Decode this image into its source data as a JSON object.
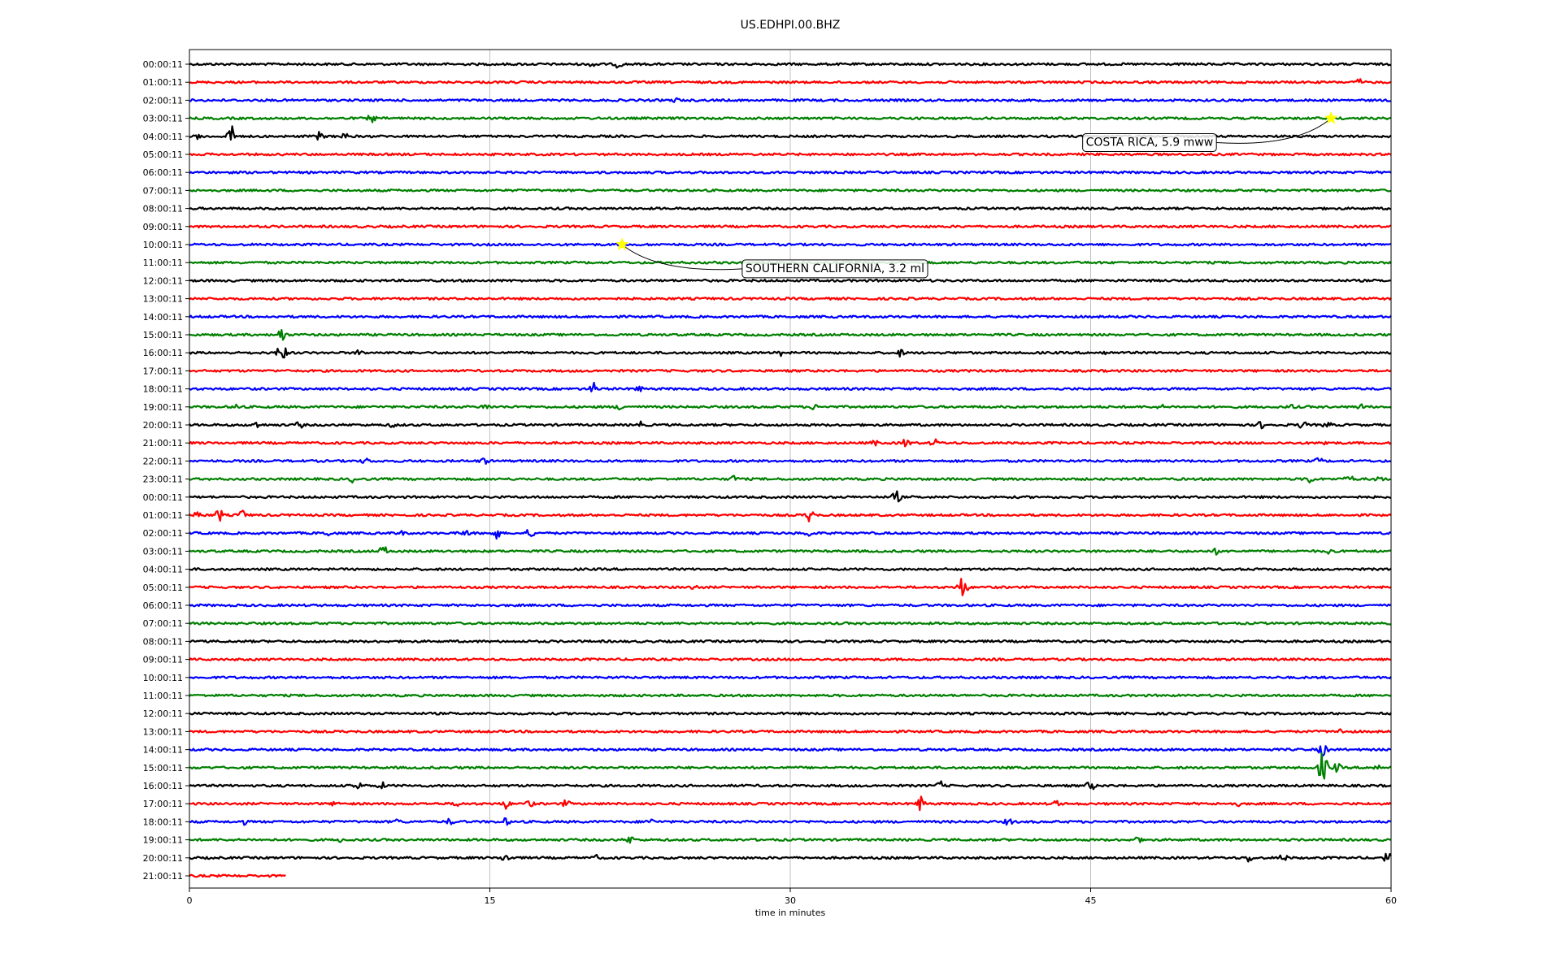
{
  "chart_data": {
    "type": "line",
    "title": "US.EDHPI.00.BHZ",
    "xlabel": "time in minutes",
    "xlim": [
      0,
      60
    ],
    "xticks": [
      "0",
      "15",
      "30",
      "45",
      "60"
    ],
    "grid_x": true,
    "trace_minutes": 60,
    "last_trace_minutes": 4.8,
    "color_cycle": [
      "#000000",
      "#ff0000",
      "#0000ff",
      "#008000"
    ],
    "row_labels": [
      "00:00:11",
      "01:00:11",
      "02:00:11",
      "03:00:11",
      "04:00:11",
      "05:00:11",
      "06:00:11",
      "07:00:11",
      "08:00:11",
      "09:00:11",
      "10:00:11",
      "11:00:11",
      "12:00:11",
      "13:00:11",
      "14:00:11",
      "15:00:11",
      "16:00:11",
      "17:00:11",
      "18:00:11",
      "19:00:11",
      "20:00:11",
      "21:00:11",
      "22:00:11",
      "23:00:11",
      "00:00:11",
      "01:00:11",
      "02:00:11",
      "03:00:11",
      "04:00:11",
      "05:00:11",
      "06:00:11",
      "07:00:11",
      "08:00:11",
      "09:00:11",
      "10:00:11",
      "11:00:11",
      "12:00:11",
      "13:00:11",
      "14:00:11",
      "15:00:11",
      "16:00:11",
      "17:00:11",
      "18:00:11",
      "19:00:11",
      "20:00:11",
      "21:00:11"
    ],
    "bursts": [
      {
        "row": 0,
        "minute": 20.2,
        "amp": 0.55
      },
      {
        "row": 0,
        "minute": 21.4,
        "amp": 0.5
      },
      {
        "row": 1,
        "minute": 58.4,
        "amp": 0.45
      },
      {
        "row": 2,
        "minute": 24.3,
        "amp": 0.35
      },
      {
        "row": 3,
        "minute": 9.1,
        "amp": 0.55
      },
      {
        "row": 4,
        "minute": 0.5,
        "amp": 0.45
      },
      {
        "row": 4,
        "minute": 2.1,
        "amp": 1.3
      },
      {
        "row": 4,
        "minute": 6.5,
        "amp": 0.6
      },
      {
        "row": 4,
        "minute": 7.7,
        "amp": 0.55
      },
      {
        "row": 15,
        "minute": 4.6,
        "amp": 0.9
      },
      {
        "row": 16,
        "minute": 4.6,
        "amp": 1.4
      },
      {
        "row": 16,
        "minute": 8.5,
        "amp": 0.45
      },
      {
        "row": 16,
        "minute": 29.6,
        "amp": 0.45
      },
      {
        "row": 16,
        "minute": 35.5,
        "amp": 0.5
      },
      {
        "row": 16,
        "minute": 45.7,
        "amp": 0.4
      },
      {
        "row": 18,
        "minute": 20.2,
        "amp": 0.7
      },
      {
        "row": 18,
        "minute": 22.4,
        "amp": 0.5
      },
      {
        "row": 19,
        "minute": 2.4,
        "amp": 0.45
      },
      {
        "row": 19,
        "minute": 14.8,
        "amp": 0.5
      },
      {
        "row": 19,
        "minute": 21.5,
        "amp": 0.45
      },
      {
        "row": 19,
        "minute": 31.2,
        "amp": 0.4
      },
      {
        "row": 19,
        "minute": 48.5,
        "amp": 0.35
      },
      {
        "row": 19,
        "minute": 55.0,
        "amp": 0.4
      },
      {
        "row": 19,
        "minute": 58.5,
        "amp": 0.4
      },
      {
        "row": 20,
        "minute": 3.3,
        "amp": 0.5
      },
      {
        "row": 20,
        "minute": 5.5,
        "amp": 0.5
      },
      {
        "row": 20,
        "minute": 10.2,
        "amp": 0.4
      },
      {
        "row": 20,
        "minute": 22.5,
        "amp": 0.45
      },
      {
        "row": 20,
        "minute": 53.5,
        "amp": 0.5
      },
      {
        "row": 20,
        "minute": 55.6,
        "amp": 0.55
      },
      {
        "row": 20,
        "minute": 56.8,
        "amp": 0.5
      },
      {
        "row": 21,
        "minute": 34.2,
        "amp": 0.4
      },
      {
        "row": 21,
        "minute": 35.8,
        "amp": 0.6
      },
      {
        "row": 21,
        "minute": 37.2,
        "amp": 0.55
      },
      {
        "row": 21,
        "minute": 56.7,
        "amp": 0.4
      },
      {
        "row": 22,
        "minute": 8.8,
        "amp": 0.45
      },
      {
        "row": 22,
        "minute": 14.7,
        "amp": 0.5
      },
      {
        "row": 22,
        "minute": 56.4,
        "amp": 0.45
      },
      {
        "row": 23,
        "minute": 8.2,
        "amp": 0.5
      },
      {
        "row": 23,
        "minute": 27.2,
        "amp": 0.5
      },
      {
        "row": 23,
        "minute": 55.9,
        "amp": 0.6
      },
      {
        "row": 23,
        "minute": 57.9,
        "amp": 0.6
      },
      {
        "row": 23,
        "minute": 59.4,
        "amp": 0.45
      },
      {
        "row": 24,
        "minute": 35.3,
        "amp": 0.8
      },
      {
        "row": 25,
        "minute": 0.4,
        "amp": 0.55
      },
      {
        "row": 25,
        "minute": 1.5,
        "amp": 0.8
      },
      {
        "row": 25,
        "minute": 2.6,
        "amp": 0.7
      },
      {
        "row": 25,
        "minute": 31.0,
        "amp": 0.9
      },
      {
        "row": 26,
        "minute": 6.9,
        "amp": 0.45
      },
      {
        "row": 26,
        "minute": 10.5,
        "amp": 0.45
      },
      {
        "row": 26,
        "minute": 13.8,
        "amp": 0.55
      },
      {
        "row": 26,
        "minute": 15.3,
        "amp": 0.8
      },
      {
        "row": 26,
        "minute": 17.0,
        "amp": 0.6
      },
      {
        "row": 26,
        "minute": 30.9,
        "amp": 0.5
      },
      {
        "row": 27,
        "minute": 9.7,
        "amp": 0.7
      },
      {
        "row": 27,
        "minute": 51.3,
        "amp": 0.45
      },
      {
        "row": 27,
        "minute": 57.0,
        "amp": 0.5
      },
      {
        "row": 29,
        "minute": 25.2,
        "amp": 0.4
      },
      {
        "row": 29,
        "minute": 38.6,
        "amp": 1.4
      },
      {
        "row": 37,
        "minute": 57.4,
        "amp": 0.45
      },
      {
        "row": 38,
        "minute": 56.6,
        "amp": 0.9
      },
      {
        "row": 39,
        "minute": 56.6,
        "amp": 2.0
      },
      {
        "row": 39,
        "minute": 57.3,
        "amp": 0.6
      },
      {
        "row": 39,
        "minute": 59.3,
        "amp": 0.5
      },
      {
        "row": 40,
        "minute": 8.4,
        "amp": 0.6
      },
      {
        "row": 40,
        "minute": 9.6,
        "amp": 0.5
      },
      {
        "row": 40,
        "minute": 37.5,
        "amp": 0.55
      },
      {
        "row": 40,
        "minute": 45.0,
        "amp": 0.7
      },
      {
        "row": 41,
        "minute": 7.3,
        "amp": 0.4
      },
      {
        "row": 41,
        "minute": 13.4,
        "amp": 0.5
      },
      {
        "row": 41,
        "minute": 15.8,
        "amp": 0.6
      },
      {
        "row": 41,
        "minute": 17.0,
        "amp": 0.5
      },
      {
        "row": 41,
        "minute": 18.8,
        "amp": 0.5
      },
      {
        "row": 41,
        "minute": 36.5,
        "amp": 0.9
      },
      {
        "row": 41,
        "minute": 43.3,
        "amp": 0.45
      },
      {
        "row": 41,
        "minute": 52.3,
        "amp": 0.4
      },
      {
        "row": 42,
        "minute": 2.7,
        "amp": 0.4
      },
      {
        "row": 42,
        "minute": 10.4,
        "amp": 0.4
      },
      {
        "row": 42,
        "minute": 13.0,
        "amp": 0.45
      },
      {
        "row": 42,
        "minute": 15.8,
        "amp": 0.5
      },
      {
        "row": 42,
        "minute": 23.0,
        "amp": 0.45
      },
      {
        "row": 42,
        "minute": 40.9,
        "amp": 0.5
      },
      {
        "row": 43,
        "minute": 7.6,
        "amp": 0.35
      },
      {
        "row": 43,
        "minute": 22.0,
        "amp": 0.55
      },
      {
        "row": 43,
        "minute": 47.3,
        "amp": 0.55
      },
      {
        "row": 44,
        "minute": 15.8,
        "amp": 0.6
      },
      {
        "row": 44,
        "minute": 20.3,
        "amp": 0.4
      },
      {
        "row": 44,
        "minute": 52.9,
        "amp": 0.55
      },
      {
        "row": 44,
        "minute": 54.6,
        "amp": 0.55
      },
      {
        "row": 44,
        "minute": 59.8,
        "amp": 0.7
      }
    ],
    "events": [
      {
        "label": "COSTA RICA, 5.9 mww",
        "row": 3,
        "minute": 57.0,
        "label_minute": 44.6,
        "label_row": 4.3
      },
      {
        "label": "SOUTHERN CALIFORNIA, 3.2 ml",
        "row": 10,
        "minute": 21.6,
        "label_minute": 27.6,
        "label_row": 11.3
      }
    ],
    "marker_color": "#ffff00"
  }
}
